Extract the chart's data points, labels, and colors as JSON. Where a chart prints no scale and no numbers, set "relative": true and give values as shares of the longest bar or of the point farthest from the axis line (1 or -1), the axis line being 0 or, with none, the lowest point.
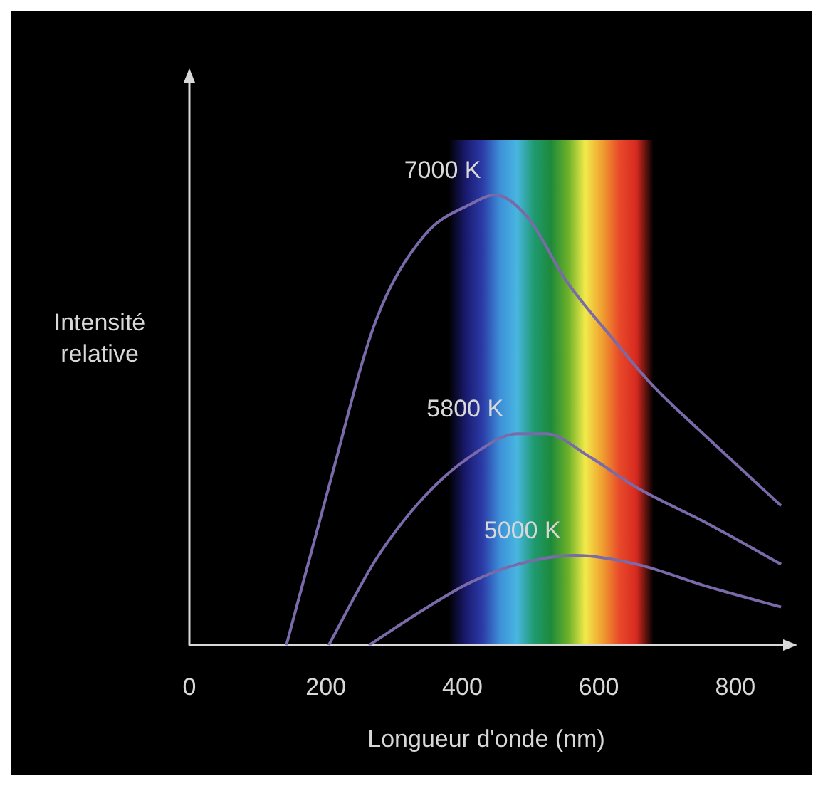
{
  "chart_data": {
    "type": "line",
    "relative": true,
    "xlabel": "Longueur d'onde (nm)",
    "ylabel": "Intensité relative",
    "xlim": [
      0,
      870
    ],
    "xticks": [
      0,
      200,
      400,
      600,
      800
    ],
    "grid": false,
    "legend": false,
    "marker": "none",
    "tick_labels": "x",
    "bands": [
      {
        "axis": "x",
        "from": 380,
        "to": 680
      }
    ],
    "series": [
      {
        "name": "7000 K",
        "color": "#7a6aaa",
        "x": [
          142,
          204,
          273,
          344,
          412,
          448,
          496,
          552,
          621,
          677,
          760,
          867
        ],
        "values": [
          0,
          0.35,
          0.72,
          0.91,
          0.98,
          1,
          0.95,
          0.81,
          0.68,
          0.58,
          0.46,
          0.31
        ]
      },
      {
        "name": "5800 K",
        "color": "#7a6aaa",
        "x": [
          204,
          273,
          344,
          412,
          481,
          523,
          585,
          656,
          760,
          867
        ],
        "values": [
          0,
          0.19,
          0.33,
          0.42,
          0.47,
          0.47,
          0.42,
          0.35,
          0.27,
          0.18
        ]
      },
      {
        "name": "5000 K",
        "color": "#7a6aaa",
        "x": [
          263,
          344,
          412,
          481,
          565,
          656,
          760,
          867
        ],
        "values": [
          0,
          0.08,
          0.14,
          0.18,
          0.2,
          0.18,
          0.13,
          0.085
        ]
      }
    ]
  }
}
